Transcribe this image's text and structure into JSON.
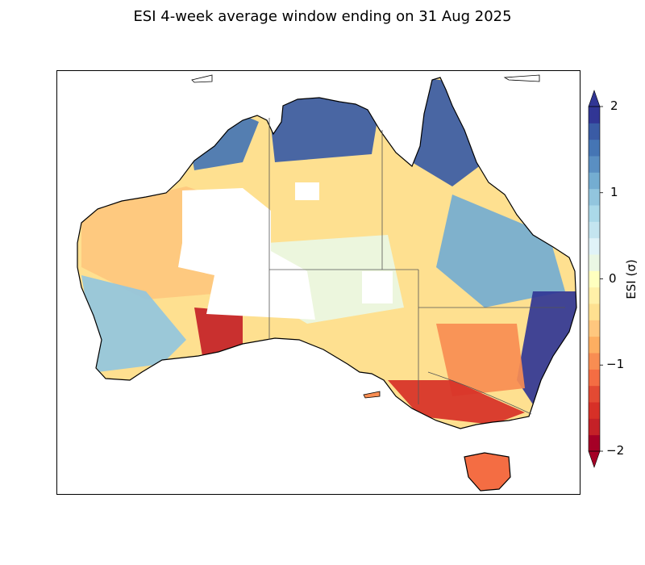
{
  "title": "ESI 4-week average window ending on 31 Aug 2025",
  "colorbar": {
    "label": "ESI (σ)",
    "ticks": [
      "2",
      "1",
      "0",
      "−1",
      "−2"
    ],
    "range": [
      -2,
      2
    ],
    "extend": "both",
    "colormap": "RdYlBu",
    "colors": [
      "#a50026",
      "#c42127",
      "#d73027",
      "#e34a33",
      "#f46d43",
      "#f88d52",
      "#fdae61",
      "#fec77e",
      "#fee090",
      "#fff0a8",
      "#ffffbf",
      "#eaf7e4",
      "#e0f3f8",
      "#c4e5f0",
      "#abd9e9",
      "#92c5de",
      "#74add1",
      "#5a8fc2",
      "#4575b4",
      "#3a5ba5",
      "#313695"
    ]
  },
  "map": {
    "region": "Australia",
    "regions": [
      {
        "name": "North-west coast",
        "esi": 1.6
      },
      {
        "name": "Top End",
        "esi": 1.8
      },
      {
        "name": "Cape York",
        "esi": 1.7
      },
      {
        "name": "Interior Western Australia",
        "esi": -0.6
      },
      {
        "name": "Southern Western Australia",
        "esi": 1.0
      },
      {
        "name": "Great Australian Bight",
        "esi": -1.8
      },
      {
        "name": "South-eastern Queensland",
        "esi": 1.2
      },
      {
        "name": "Eastern New South Wales coast",
        "esi": 1.9
      },
      {
        "name": "Inland New South Wales",
        "esi": -0.9
      },
      {
        "name": "Victoria",
        "esi": -1.5
      },
      {
        "name": "Tasmania",
        "esi": -1.2
      },
      {
        "name": "Central Australia",
        "esi": 0.2
      }
    ]
  }
}
